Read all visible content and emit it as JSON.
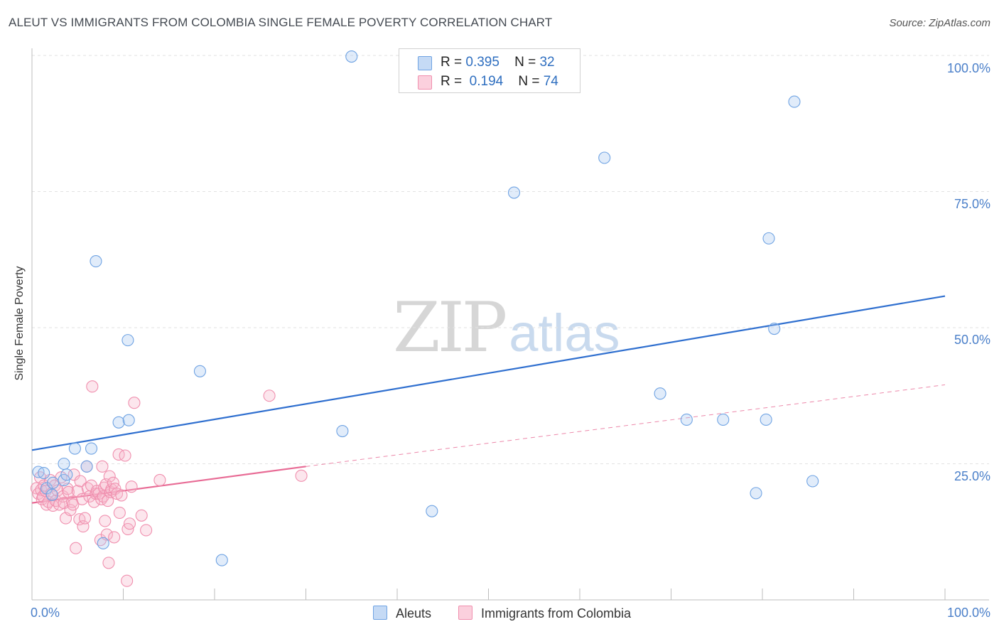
{
  "header": {
    "title": "ALEUT VS IMMIGRANTS FROM COLOMBIA SINGLE FEMALE POVERTY CORRELATION CHART",
    "source": "Source: ZipAtlas.com"
  },
  "watermark": {
    "zip": "ZIP",
    "atlas": "atlas"
  },
  "legend": {
    "rows": [
      {
        "r_label": "R =",
        "r_value": "0.395",
        "n_label": "N =",
        "n_value": "32",
        "color": "#a9c9f0"
      },
      {
        "r_label": "R =",
        "r_value": "0.194",
        "n_label": "N =",
        "n_value": "74",
        "color": "#f6b8cb"
      }
    ]
  },
  "bottom_legend": {
    "series1": "Aleuts",
    "series2": "Immigrants from Colombia"
  },
  "chart_data": {
    "type": "scatter",
    "title": "ALEUT VS IMMIGRANTS FROM COLOMBIA SINGLE FEMALE POVERTY CORRELATION CHART",
    "xlabel": "",
    "ylabel": "Single Female Poverty",
    "xlim": [
      0,
      100
    ],
    "ylim": [
      0,
      100
    ],
    "x_tick_labels": [
      "0.0%",
      "100.0%"
    ],
    "y_tick_labels": [
      "100.0%",
      "75.0%",
      "50.0%",
      "25.0%"
    ],
    "y_ticks": [
      100,
      75,
      50,
      25
    ],
    "grid": true,
    "colors": {
      "aleuts": "#6fa3e3",
      "aleuts_line": "#2f6fcf",
      "colombia": "#f08fae",
      "colombia_line": "#e86b95"
    },
    "series": [
      {
        "name": "Aleuts",
        "r": 0.395,
        "n": 32,
        "trend": {
          "x": [
            0,
            100
          ],
          "y": [
            27.5,
            55.8
          ]
        },
        "points": [
          [
            0.7,
            23.5
          ],
          [
            1.3,
            23.3
          ],
          [
            1.6,
            20.5
          ],
          [
            2.2,
            19.3
          ],
          [
            2.3,
            21.5
          ],
          [
            3.5,
            25.0
          ],
          [
            3.5,
            22.0
          ],
          [
            3.8,
            23.0
          ],
          [
            4.7,
            27.8
          ],
          [
            6.0,
            24.5
          ],
          [
            6.5,
            27.8
          ],
          [
            7.0,
            62.2
          ],
          [
            7.8,
            10.4
          ],
          [
            9.5,
            32.6
          ],
          [
            10.5,
            47.7
          ],
          [
            10.6,
            33.0
          ],
          [
            18.4,
            42.0
          ],
          [
            20.8,
            7.3
          ],
          [
            34.0,
            31.0
          ],
          [
            35.0,
            99.8
          ],
          [
            43.8,
            16.3
          ],
          [
            52.8,
            74.8
          ],
          [
            62.7,
            81.2
          ],
          [
            68.8,
            37.9
          ],
          [
            71.7,
            33.1
          ],
          [
            75.7,
            33.1
          ],
          [
            79.3,
            19.6
          ],
          [
            80.4,
            33.1
          ],
          [
            80.7,
            66.4
          ],
          [
            81.3,
            49.8
          ],
          [
            83.5,
            91.5
          ],
          [
            85.5,
            21.8
          ]
        ]
      },
      {
        "name": "Immigrants from Colombia",
        "r": 0.194,
        "n": 74,
        "trend": {
          "x": [
            0,
            30
          ],
          "y": [
            17.8,
            24.5
          ]
        },
        "trend_dashed": {
          "x": [
            30,
            100
          ],
          "y": [
            24.5,
            39.5
          ]
        },
        "points": [
          [
            0.5,
            20.5
          ],
          [
            0.7,
            19.5
          ],
          [
            0.9,
            22.5
          ],
          [
            1.0,
            20.2
          ],
          [
            1.1,
            18.5
          ],
          [
            1.2,
            19.0
          ],
          [
            1.3,
            21.0
          ],
          [
            1.5,
            20.0
          ],
          [
            1.6,
            17.5
          ],
          [
            1.8,
            18.0
          ],
          [
            2.0,
            22.0
          ],
          [
            2.1,
            19.5
          ],
          [
            2.3,
            17.3
          ],
          [
            2.5,
            21.0
          ],
          [
            2.6,
            18.2
          ],
          [
            2.8,
            20.1
          ],
          [
            3.0,
            17.5
          ],
          [
            3.2,
            22.5
          ],
          [
            3.4,
            19.0
          ],
          [
            3.5,
            17.8
          ],
          [
            3.7,
            15.0
          ],
          [
            3.9,
            20.4
          ],
          [
            4.0,
            19.8
          ],
          [
            4.2,
            16.5
          ],
          [
            4.4,
            18.0
          ],
          [
            4.5,
            17.5
          ],
          [
            4.6,
            23.0
          ],
          [
            4.8,
            9.5
          ],
          [
            5.0,
            20.0
          ],
          [
            5.2,
            14.8
          ],
          [
            5.3,
            21.8
          ],
          [
            5.5,
            18.5
          ],
          [
            5.6,
            13.5
          ],
          [
            5.8,
            15.0
          ],
          [
            6.0,
            24.5
          ],
          [
            6.1,
            20.5
          ],
          [
            6.3,
            19.0
          ],
          [
            6.5,
            21.0
          ],
          [
            6.6,
            39.2
          ],
          [
            6.8,
            18.0
          ],
          [
            7.0,
            19.5
          ],
          [
            7.1,
            20.0
          ],
          [
            7.3,
            19.5
          ],
          [
            7.5,
            11.0
          ],
          [
            7.6,
            18.5
          ],
          [
            7.7,
            24.5
          ],
          [
            7.8,
            19.0
          ],
          [
            7.9,
            20.6
          ],
          [
            8.0,
            14.5
          ],
          [
            8.1,
            21.2
          ],
          [
            8.2,
            12.0
          ],
          [
            8.3,
            18.2
          ],
          [
            8.4,
            6.8
          ],
          [
            8.5,
            22.7
          ],
          [
            8.6,
            19.8
          ],
          [
            8.7,
            20.3
          ],
          [
            8.9,
            21.5
          ],
          [
            9.0,
            11.5
          ],
          [
            9.1,
            20.4
          ],
          [
            9.3,
            19.5
          ],
          [
            9.5,
            26.7
          ],
          [
            9.6,
            16.0
          ],
          [
            9.8,
            19.2
          ],
          [
            10.2,
            26.5
          ],
          [
            10.4,
            3.5
          ],
          [
            10.5,
            13.0
          ],
          [
            10.7,
            14.0
          ],
          [
            10.9,
            20.8
          ],
          [
            11.2,
            36.2
          ],
          [
            12.0,
            15.5
          ],
          [
            12.5,
            12.8
          ],
          [
            14.0,
            22.0
          ],
          [
            26.0,
            37.5
          ],
          [
            29.5,
            22.8
          ]
        ]
      }
    ]
  }
}
